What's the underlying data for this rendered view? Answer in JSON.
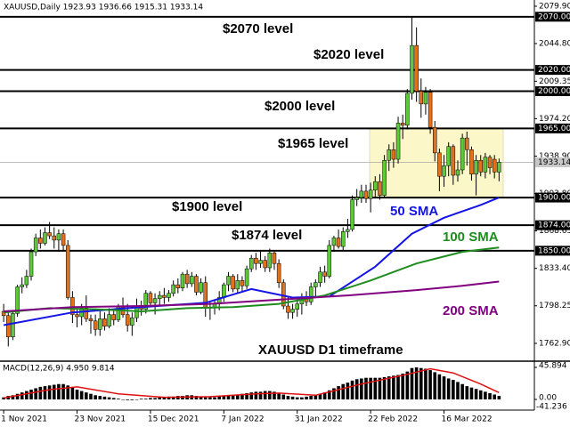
{
  "chart_data": [
    {
      "type": "candlestick",
      "title": "XAUUSD,Daily  1923.93 1936.66 1915.31 1933.14",
      "up_color": "#5cc83a",
      "down_color": "#e2711d",
      "candles": [
        [
          1793,
          1800,
          1783,
          1789
        ],
        [
          1789,
          1794,
          1760,
          1769
        ],
        [
          1769,
          1793,
          1766,
          1791
        ],
        [
          1791,
          1818,
          1788,
          1816
        ],
        [
          1816,
          1825,
          1810,
          1818
        ],
        [
          1818,
          1832,
          1815,
          1826
        ],
        [
          1826,
          1852,
          1822,
          1849
        ],
        [
          1849,
          1866,
          1845,
          1862
        ],
        [
          1862,
          1870,
          1852,
          1857
        ],
        [
          1857,
          1872,
          1855,
          1867
        ],
        [
          1867,
          1877,
          1861,
          1864
        ],
        [
          1864,
          1872,
          1852,
          1860
        ],
        [
          1860,
          1870,
          1849,
          1866
        ],
        [
          1866,
          1870,
          1850,
          1855
        ],
        [
          1855,
          1860,
          1804,
          1806
        ],
        [
          1806,
          1812,
          1782,
          1790
        ],
        [
          1790,
          1796,
          1778,
          1788
        ],
        [
          1788,
          1800,
          1780,
          1796
        ],
        [
          1796,
          1808,
          1783,
          1786
        ],
        [
          1786,
          1790,
          1772,
          1784
        ],
        [
          1784,
          1790,
          1770,
          1776
        ],
        [
          1776,
          1793,
          1770,
          1786
        ],
        [
          1786,
          1792,
          1775,
          1779
        ],
        [
          1779,
          1796,
          1777,
          1790
        ],
        [
          1790,
          1794,
          1780,
          1785
        ],
        [
          1785,
          1800,
          1783,
          1797
        ],
        [
          1797,
          1806,
          1787,
          1790
        ],
        [
          1790,
          1800,
          1774,
          1780
        ],
        [
          1780,
          1792,
          1770,
          1787
        ],
        [
          1787,
          1805,
          1783,
          1798
        ],
        [
          1798,
          1803,
          1789,
          1795
        ],
        [
          1795,
          1813,
          1791,
          1810
        ],
        [
          1810,
          1812,
          1797,
          1801
        ],
        [
          1801,
          1810,
          1790,
          1805
        ],
        [
          1805,
          1812,
          1798,
          1808
        ],
        [
          1808,
          1815,
          1800,
          1806
        ],
        [
          1806,
          1813,
          1802,
          1810
        ],
        [
          1810,
          1822,
          1807,
          1818
        ],
        [
          1818,
          1824,
          1810,
          1815
        ],
        [
          1815,
          1830,
          1812,
          1828
        ],
        [
          1828,
          1832,
          1815,
          1819
        ],
        [
          1819,
          1830,
          1816,
          1826
        ],
        [
          1826,
          1828,
          1808,
          1811
        ],
        [
          1811,
          1824,
          1809,
          1820
        ],
        [
          1820,
          1826,
          1788,
          1796
        ],
        [
          1796,
          1802,
          1785,
          1797
        ],
        [
          1797,
          1803,
          1790,
          1800
        ],
        [
          1800,
          1812,
          1794,
          1806
        ],
        [
          1806,
          1820,
          1802,
          1818
        ],
        [
          1818,
          1830,
          1812,
          1826
        ],
        [
          1826,
          1828,
          1811,
          1814
        ],
        [
          1814,
          1828,
          1810,
          1822
        ],
        [
          1822,
          1826,
          1812,
          1817
        ],
        [
          1817,
          1836,
          1814,
          1833
        ],
        [
          1833,
          1846,
          1830,
          1843
        ],
        [
          1843,
          1848,
          1832,
          1838
        ],
        [
          1838,
          1850,
          1834,
          1841
        ],
        [
          1841,
          1845,
          1830,
          1834
        ],
        [
          1834,
          1852,
          1830,
          1848
        ],
        [
          1848,
          1850,
          1832,
          1838
        ],
        [
          1838,
          1842,
          1815,
          1820
        ],
        [
          1820,
          1823,
          1795,
          1798
        ],
        [
          1798,
          1806,
          1786,
          1792
        ],
        [
          1792,
          1800,
          1786,
          1795
        ],
        [
          1795,
          1805,
          1788,
          1800
        ],
        [
          1800,
          1810,
          1790,
          1806
        ],
        [
          1806,
          1812,
          1798,
          1802
        ],
        [
          1802,
          1820,
          1799,
          1816
        ],
        [
          1816,
          1823,
          1806,
          1820
        ],
        [
          1820,
          1835,
          1816,
          1830
        ],
        [
          1830,
          1836,
          1820,
          1826
        ],
        [
          1826,
          1860,
          1824,
          1855
        ],
        [
          1855,
          1864,
          1849,
          1862
        ],
        [
          1862,
          1870,
          1852,
          1854
        ],
        [
          1854,
          1872,
          1850,
          1868
        ],
        [
          1868,
          1880,
          1862,
          1870
        ],
        [
          1870,
          1902,
          1868,
          1898
        ],
        [
          1898,
          1908,
          1892,
          1900
        ],
        [
          1900,
          1912,
          1895,
          1906
        ],
        [
          1906,
          1912,
          1895,
          1899
        ],
        [
          1899,
          1914,
          1886,
          1907
        ],
        [
          1907,
          1920,
          1900,
          1915
        ],
        [
          1915,
          1922,
          1898,
          1902
        ],
        [
          1902,
          1940,
          1900,
          1935
        ],
        [
          1935,
          1950,
          1925,
          1945
        ],
        [
          1945,
          1952,
          1928,
          1936
        ],
        [
          1936,
          1976,
          1932,
          1970
        ],
        [
          1970,
          1978,
          1955,
          1968
        ],
        [
          1968,
          2002,
          1964,
          1998
        ],
        [
          1998,
          2070,
          1992,
          2043
        ],
        [
          2043,
          2060,
          1990,
          2000
        ],
        [
          2000,
          2012,
          1975,
          1988
        ],
        [
          1988,
          2004,
          1978,
          1999
        ],
        [
          1999,
          2002,
          1960,
          1966
        ],
        [
          1966,
          1972,
          1934,
          1942
        ],
        [
          1942,
          1946,
          1906,
          1920
        ],
        [
          1920,
          1940,
          1910,
          1930
        ],
        [
          1930,
          1952,
          1920,
          1948
        ],
        [
          1948,
          1950,
          1912,
          1921
        ],
        [
          1921,
          1935,
          1915,
          1926
        ],
        [
          1926,
          1960,
          1922,
          1956
        ],
        [
          1956,
          1962,
          1930,
          1945
        ],
        [
          1945,
          1948,
          1916,
          1922
        ],
        [
          1922,
          1940,
          1902,
          1935
        ],
        [
          1935,
          1940,
          1920,
          1924
        ],
        [
          1924,
          1942,
          1918,
          1938
        ],
        [
          1938,
          1940,
          1922,
          1928
        ],
        [
          1936,
          1940,
          1918,
          1924
        ],
        [
          1923.93,
          1936.66,
          1915.31,
          1933.14
        ]
      ],
      "xlim": [
        -0.8,
        115.7
      ],
      "xticks": [
        {
          "value": 0,
          "label": "1 Nov 2021"
        },
        {
          "value": 16,
          "label": "23 Nov 2021"
        },
        {
          "value": 32,
          "label": "15 Dec 2021"
        },
        {
          "value": 48,
          "label": "7 Jan 2022"
        },
        {
          "value": 64,
          "label": "31 Jan 2022"
        },
        {
          "value": 80,
          "label": "22 Feb 2022"
        },
        {
          "value": 96,
          "label": "16 Mar 2022"
        }
      ],
      "ylim": [
        1747,
        2085.75
      ],
      "yticks": [
        {
          "value": 2079.9,
          "label": "2079.90"
        },
        {
          "value": 2044.8,
          "label": "2044.80"
        },
        {
          "value": 2009.35,
          "label": "2009.35"
        },
        {
          "value": 1974.2,
          "label": "1974.20"
        },
        {
          "value": 1938.9,
          "label": "1938.90"
        },
        {
          "value": 1903.8,
          "label": "1903.80"
        },
        {
          "value": 1868.65,
          "label": "1868.65"
        },
        {
          "value": 1833.4,
          "label": "1833.40"
        },
        {
          "value": 1798.25,
          "label": "1798.25"
        },
        {
          "value": 1762.9,
          "label": "1762.90"
        }
      ],
      "levels": [
        {
          "value": 2070,
          "label": "2070.00",
          "text": "$2070 level"
        },
        {
          "value": 2020,
          "label": "2020.00",
          "text": "$2020 level"
        },
        {
          "value": 2000,
          "label": "2000.00",
          "text": "$2000 level"
        },
        {
          "value": 1965,
          "label": "1965.00",
          "text": "$1965 level"
        },
        {
          "value": 1900,
          "label": "1900.00",
          "text": "$1900 level"
        },
        {
          "value": 1874,
          "label": "1874.00",
          "text": "$1874 level"
        },
        {
          "value": 1850,
          "label": "1850.00"
        }
      ],
      "current_price": {
        "value": 1933.14,
        "label": "1933.14"
      },
      "zone": [
        1900,
        1965
      ],
      "zone_color": "#fbf7c8",
      "series": [
        {
          "name": "50 SMA",
          "color": "#1414e6",
          "x": [
            0,
            15,
            30,
            44,
            54,
            63,
            71,
            81,
            89,
            96,
            104,
            108
          ],
          "values": [
            1780,
            1792,
            1797,
            1801,
            1814,
            1806,
            1807,
            1835,
            1866,
            1881,
            1893,
            1900
          ]
        },
        {
          "name": "100 SMA",
          "color": "#1e8c1e",
          "x": [
            0,
            10,
            20,
            30,
            40,
            50,
            60,
            70,
            80,
            90,
            100,
            108
          ],
          "values": [
            1792,
            1796,
            1795,
            1793,
            1796,
            1797,
            1800,
            1808,
            1822,
            1838,
            1849,
            1853
          ]
        },
        {
          "name": "200 SMA",
          "color": "#800080",
          "x": [
            0,
            15,
            30,
            45,
            60,
            75,
            90,
            100,
            108
          ],
          "values": [
            1793,
            1797,
            1798,
            1800,
            1804,
            1808,
            1813,
            1817,
            1821
          ]
        }
      ],
      "annotation": "XAUUSD D1 timeframe"
    },
    {
      "type": "macd",
      "title": "MACD(12,26,9) 4.950 9.814",
      "color": "#000000",
      "values": [
        3,
        5,
        6,
        8,
        10,
        12,
        14,
        16,
        18,
        19,
        20,
        21,
        22,
        22,
        20,
        17,
        14,
        12,
        10,
        8,
        6,
        5,
        4,
        3,
        2,
        1,
        0,
        -1,
        -1,
        0,
        1,
        1,
        2,
        2,
        3,
        3,
        4,
        4,
        5,
        5,
        6,
        6,
        5,
        4,
        3,
        3,
        3,
        4,
        5,
        6,
        6,
        7,
        8,
        9,
        10,
        11,
        11,
        12,
        12,
        11,
        9,
        7,
        5,
        4,
        3,
        3,
        4,
        5,
        6,
        8,
        10,
        13,
        16,
        19,
        22,
        24,
        27,
        29,
        30,
        31,
        31,
        31,
        31,
        32,
        33,
        34,
        35,
        37,
        40,
        45,
        46,
        45,
        44,
        42,
        39,
        36,
        33,
        30,
        28,
        25,
        22,
        19,
        17,
        15,
        13,
        11,
        9,
        7,
        4.95
      ],
      "signal_color": "#e01010",
      "signal_x": [
        0,
        10,
        16,
        25,
        35,
        45,
        55,
        60,
        68,
        78,
        88,
        93,
        98,
        104,
        108
      ],
      "signal_values": [
        2,
        14,
        18,
        8,
        3,
        4,
        8,
        9,
        6,
        22,
        36,
        44,
        38,
        22,
        9.814
      ],
      "xlim": [
        -0.8,
        115.7
      ],
      "ylim": [
        -15.3,
        53.55
      ],
      "yticks": [
        {
          "value": 45.894,
          "label": "45.894"
        },
        {
          "value": 0,
          "label": "0.00"
        }
      ],
      "min_label": "-41.236"
    }
  ]
}
